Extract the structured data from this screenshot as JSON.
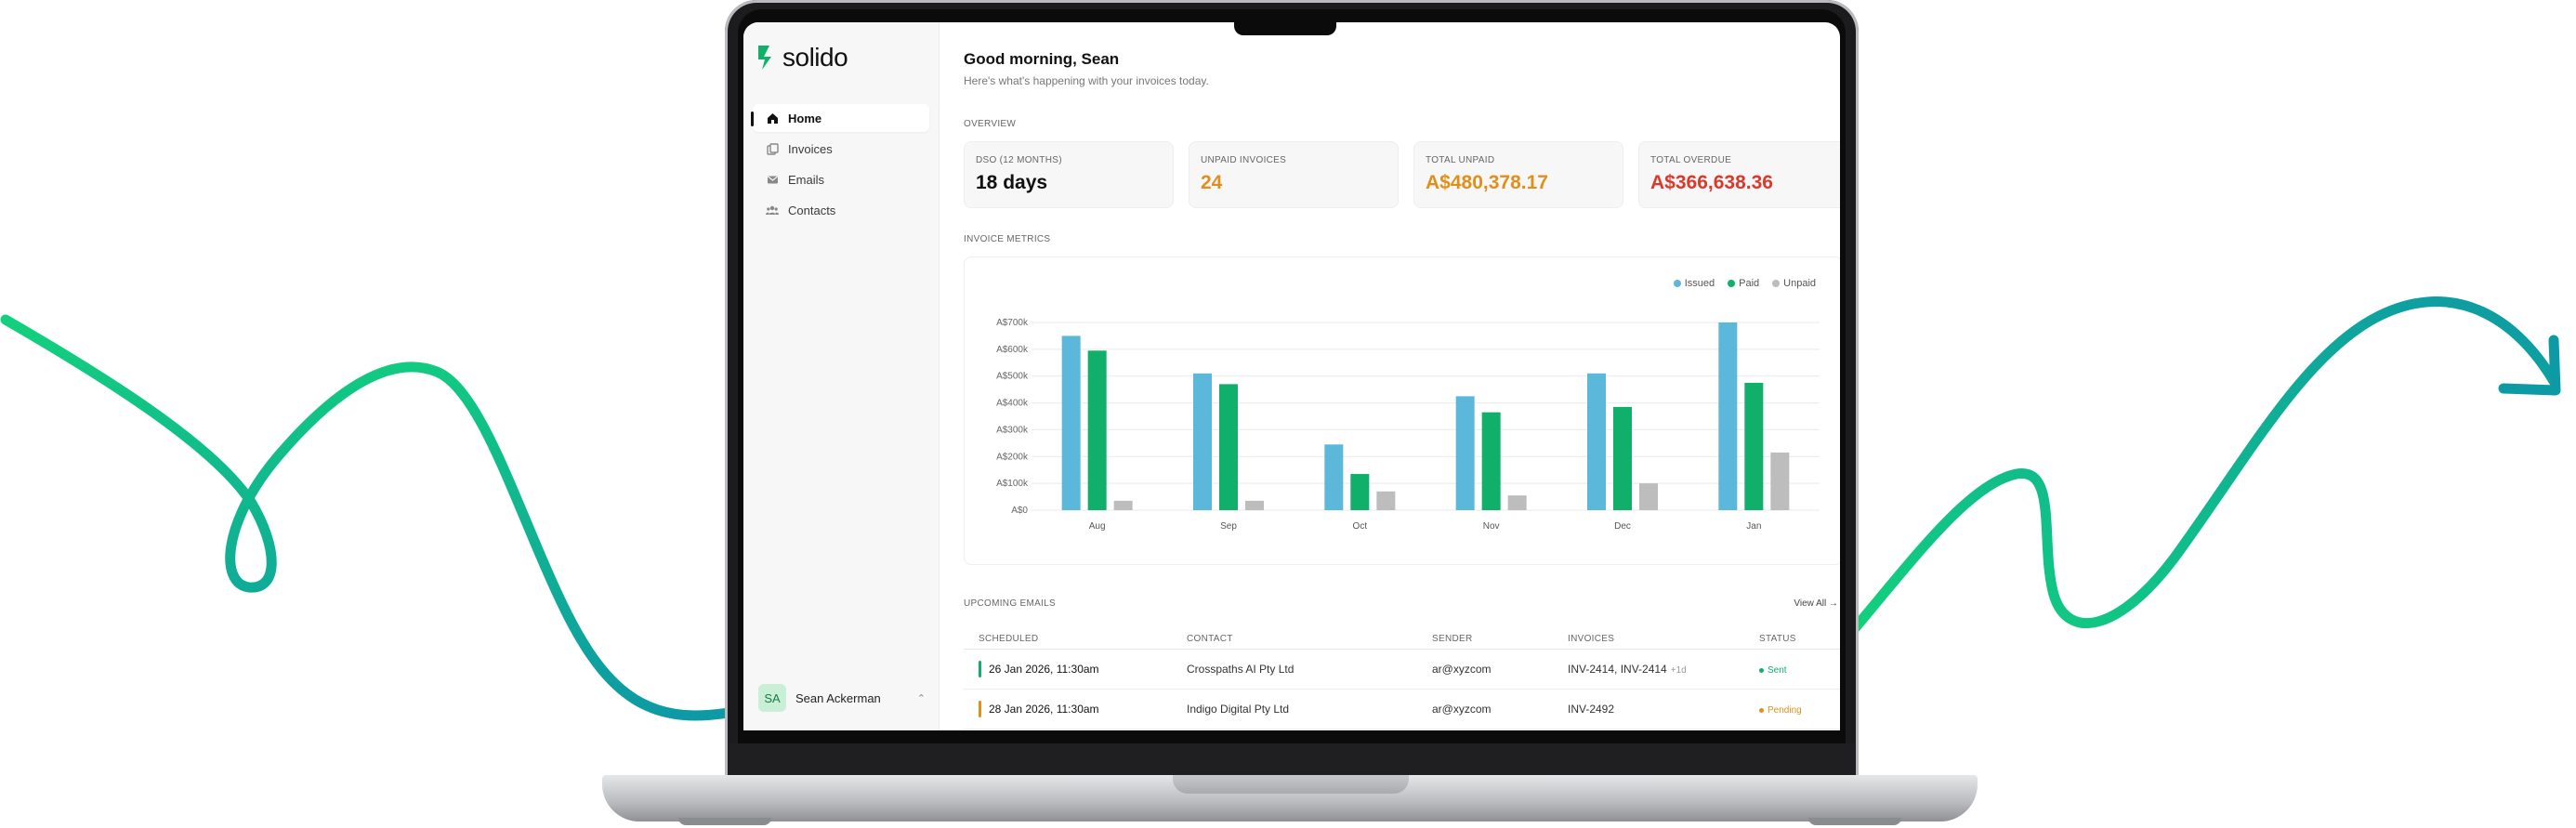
{
  "brand": {
    "name": "solido",
    "color": "#10b06a"
  },
  "colors": {
    "issued": "#5bb8da",
    "paid": "#10b06a",
    "unpaid": "#bdbdbd",
    "orange": "#e0901a",
    "red": "#d93a2b"
  },
  "sidebar": {
    "items": [
      {
        "label": "Home",
        "icon": "home-icon",
        "active": true
      },
      {
        "label": "Invoices",
        "icon": "invoices-icon",
        "active": false
      },
      {
        "label": "Emails",
        "icon": "mail-icon",
        "active": false
      },
      {
        "label": "Contacts",
        "icon": "contacts-icon",
        "active": false
      }
    ],
    "user": {
      "initials": "SA",
      "name": "Sean Ackerman"
    }
  },
  "header": {
    "greeting": "Good morning, Sean",
    "subtitle": "Here's what's happening with your invoices today."
  },
  "overview": {
    "label": "OVERVIEW",
    "cards": [
      {
        "label": "DSO (12 MONTHS)",
        "value": "18 days",
        "color": "#111111"
      },
      {
        "label": "UNPAID INVOICES",
        "value": "24",
        "color": "#e0901a"
      },
      {
        "label": "TOTAL UNPAID",
        "value": "A$480,378.17",
        "color": "#e0901a"
      },
      {
        "label": "TOTAL OVERDUE",
        "value": "A$366,638.36",
        "color": "#d93a2b"
      }
    ]
  },
  "metrics": {
    "label": "INVOICE METRICS"
  },
  "chart_data": {
    "type": "bar",
    "categories": [
      "Aug",
      "Sep",
      "Oct",
      "Nov",
      "Dec",
      "Jan"
    ],
    "series": [
      {
        "name": "Issued",
        "values": [
          650000,
          510000,
          245000,
          425000,
          510000,
          700000
        ]
      },
      {
        "name": "Paid",
        "values": [
          595000,
          470000,
          135000,
          365000,
          385000,
          475000
        ]
      },
      {
        "name": "Unpaid",
        "values": [
          35000,
          35000,
          70000,
          55000,
          100000,
          215000
        ]
      }
    ],
    "y_ticks": [
      "A$0",
      "A$100k",
      "A$200k",
      "A$300k",
      "A$400k",
      "A$500k",
      "A$600k",
      "A$700k"
    ],
    "ylim": [
      0,
      700000
    ],
    "legend": "top-right",
    "grid": true
  },
  "emails": {
    "label": "UPCOMING EMAILS",
    "view_all": "View All →",
    "columns": [
      "SCHEDULED",
      "CONTACT",
      "SENDER",
      "INVOICES",
      "STATUS"
    ],
    "rows": [
      {
        "scheduled": "26 Jan 2026, 11:30am",
        "contact": "Crosspaths AI Pty Ltd",
        "sender": "ar@xyzcom",
        "invoices": "INV-2414, INV-2414",
        "more": "+1d",
        "status": "Sent",
        "status_color": "#10b06a"
      },
      {
        "scheduled": "28 Jan 2026, 11:30am",
        "contact": "Indigo Digital Pty Ltd",
        "sender": "ar@xyzcom",
        "invoices": "INV-2492",
        "more": "",
        "status": "Pending",
        "status_color": "#e0901a"
      }
    ]
  }
}
